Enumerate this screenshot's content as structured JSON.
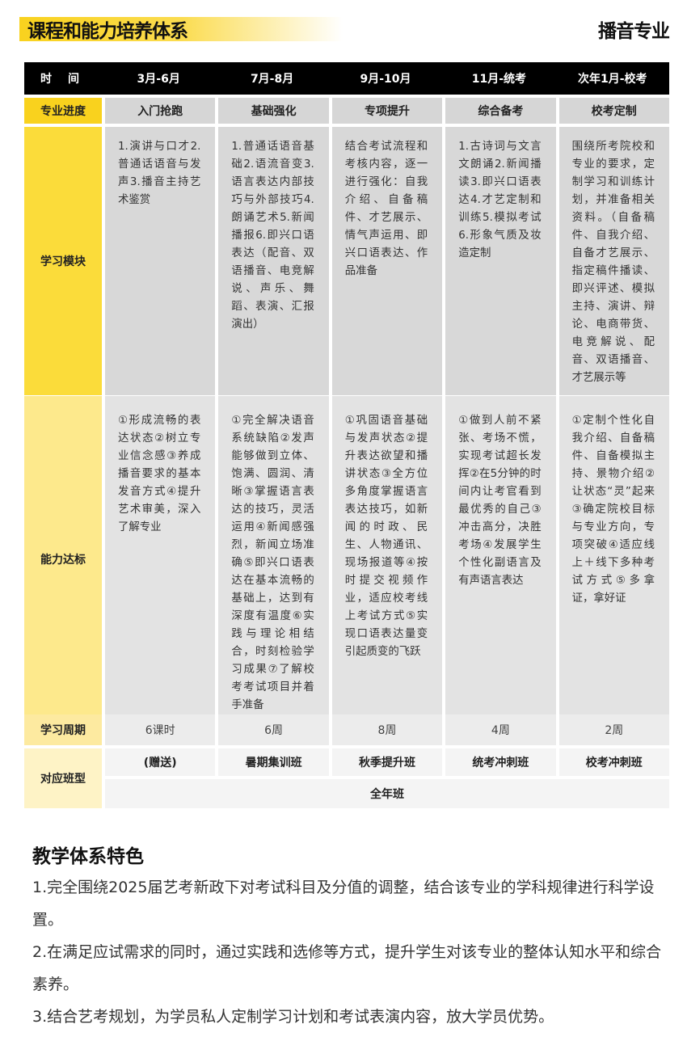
{
  "header": {
    "title": "课程和能力培养体系",
    "major": "播音专业"
  },
  "table": {
    "time_label": "时间",
    "periods": [
      "3月-6月",
      "7月-8月",
      "9月-10月",
      "11月-统考",
      "次年1月-校考"
    ],
    "progress": {
      "label": "专业进度",
      "values": [
        "入门抢跑",
        "基础强化",
        "专项提升",
        "综合备考",
        "校考定制"
      ]
    },
    "modules": {
      "label": "学习模块",
      "values": [
        "1.演讲与口才2.普通话语音与发声3.播音主持艺术鉴赏",
        "1.普通话语音基础2.语流音变3.语言表达内部技巧与外部技巧4.朗诵艺术5.新闻播报6.即兴口语表达（配音、双语播音、电竞解说、声乐、舞蹈、表演、汇报演出）",
        "结合考试流程和考核内容，逐一进行强化：自我介绍、自备稿件、才艺展示、情气声运用、即兴口语表达、作品准备",
        "1.古诗词与文言文朗诵2.新闻播读3.即兴口语表达4.才艺定制和训练5.模拟考试6.形象气质及妆造定制",
        "围绕所考院校和专业的要求，定制学习和训练计划，并准备相关资料。（自备稿件、自我介绍、自备才艺展示、指定稿件播读、即兴评述、模拟主持、演讲、辩论、电商带货、电竞解说、配音、双语播音、才艺展示等"
      ]
    },
    "abilities": {
      "label": "能力达标",
      "values": [
        "①形成流畅的表达状态②树立专业信念感③养成播音要求的基本发音方式④提升艺术审美，深入了解专业",
        "①完全解决语音系统缺陷②发声能够做到立体、饱满、圆润、清晰③掌握语言表达的技巧，灵活运用④新闻感强烈，新闻立场准确⑤即兴口语表达在基本流畅的基础上，达到有深度有温度⑥实践与理论相结合，时刻检验学习成果⑦了解校考考试项目并着手准备",
        "①巩固语音基础与发声状态②提升表达欲望和播讲状态③全方位多角度掌握语言表达技巧，如新闻的时政、民生、人物通讯、现场报道等④按时提交视频作业，适应校考线上考试方式⑤实现口语表达量变引起质变的飞跃",
        "①做到人前不紧张、考场不慌，实现考试超长发挥②在5分钟的时间内让考官看到最优秀的自己③冲击高分，决胜考场④发展学生个性化副语言及有声语言表达",
        "①定制个性化自我介绍、自备稿件、自备模拟主持、景物介绍②让状态“灵”起来③确定院校目标与专业方向，专项突破④适应线上＋线下多种考试方式⑤多拿证，拿好证"
      ]
    },
    "cycle": {
      "label": "学习周期",
      "values": [
        "6课时",
        "6周",
        "8周",
        "4周",
        "2周"
      ]
    },
    "classes": {
      "label": "对应班型",
      "values": [
        "(赠送)",
        "暑期集训班",
        "秋季提升班",
        "统考冲刺班",
        "校考冲刺班"
      ],
      "full_year": "全年班"
    }
  },
  "features": {
    "heading": "教学体系特色",
    "items": [
      "1.完全围绕2025届艺考新政下对考试科目及分值的调整，结合该专业的学科规律进行科学设置。",
      "2.在满足应试需求的同时，通过实践和选修等方式，提升学生对该专业的整体认知水平和综合素养。",
      "3.结合艺考规划，为学员私人定制学习计划和考试表演内容，放大学员优势。"
    ]
  },
  "colors": {
    "accent": "#f9d21e",
    "header_bg": "#000000",
    "cell_gray": "#d8d8d8"
  }
}
